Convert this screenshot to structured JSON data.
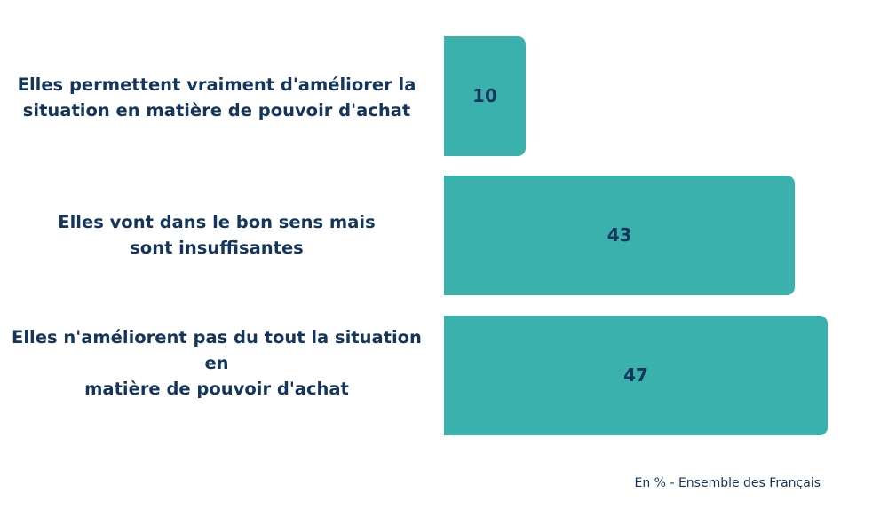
{
  "chart_data": {
    "type": "bar",
    "orientation": "horizontal",
    "categories": [
      "Elles permettent vraiment d'améliorer la\nsituation en matière de pouvoir d'achat",
      "Elles vont dans le bon sens mais\nsont insuffisantes",
      "Elles n'améliorent pas du tout la situation en\nmatière de pouvoir d'achat"
    ],
    "values": [
      10,
      43,
      47
    ],
    "value_labels": [
      "10",
      "43",
      "47"
    ],
    "xlim": [
      0,
      50
    ],
    "grid": false,
    "legend": "none",
    "note": "En % - Ensemble des Français"
  },
  "colors": {
    "bar": "#3bb1ae",
    "text": "#14365d",
    "background": "#ffffff"
  }
}
